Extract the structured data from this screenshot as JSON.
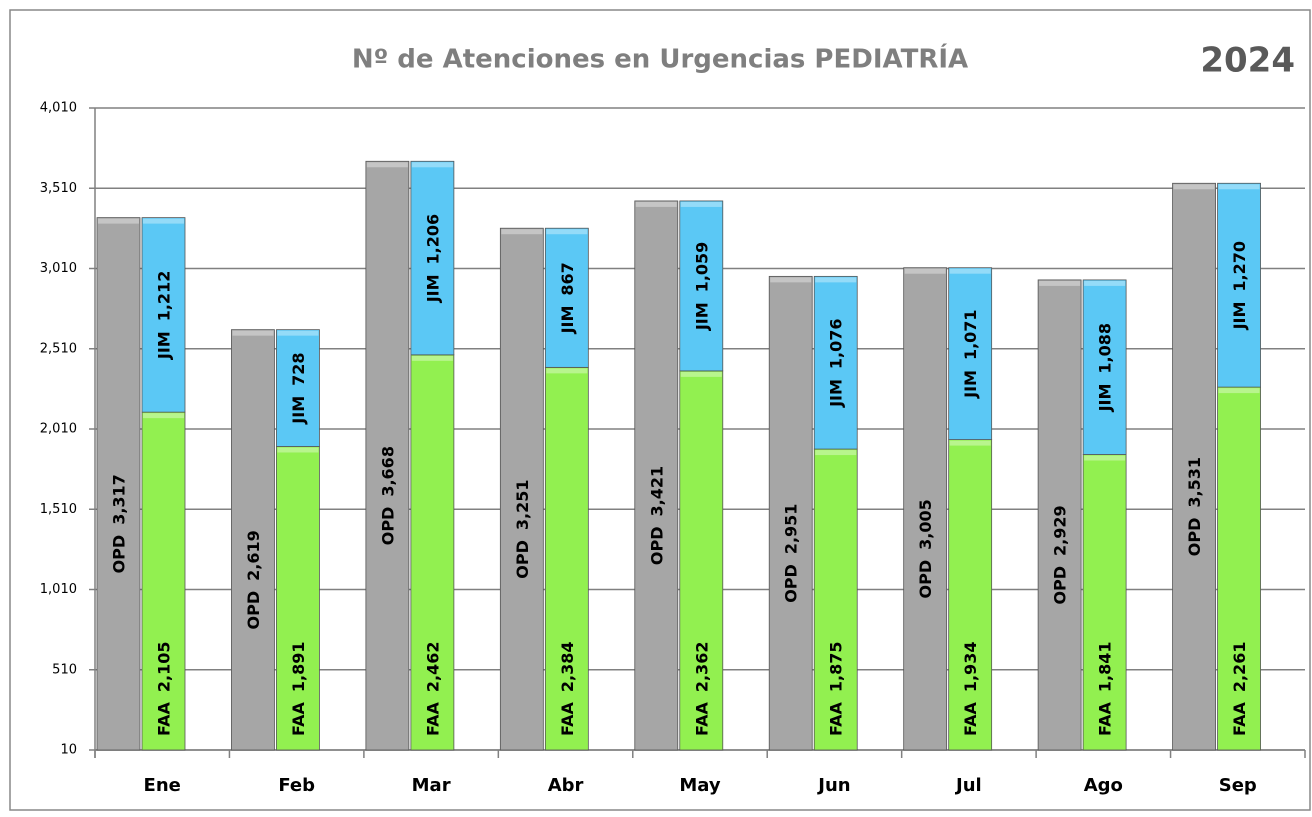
{
  "chart_data": {
    "type": "grouped_stacked_bar",
    "title": "Nº de Atenciones en Urgencias PEDIATRÍA",
    "subtitle": "2024",
    "categories": [
      "Ene",
      "Feb",
      "Mar",
      "Abr",
      "May",
      "Jun",
      "Jul",
      "Ago",
      "Sep"
    ],
    "series": [
      {
        "name": "OPD",
        "color": "#a6a6a6",
        "stack": "opd",
        "values": [
          3317,
          2619,
          3668,
          3251,
          3421,
          2951,
          3005,
          2929,
          3531
        ],
        "value_labels": [
          "3,317",
          "2,619",
          "3,668",
          "3,251",
          "3,421",
          "2,951",
          "3,005",
          "2,929",
          "3,531"
        ]
      },
      {
        "name": "FAA",
        "color": "#92f050",
        "stack": "total",
        "values": [
          2105,
          1891,
          2462,
          2384,
          2362,
          1875,
          1934,
          1841,
          2261
        ],
        "value_labels": [
          "2,105",
          "1,891",
          "2,462",
          "2,384",
          "2,362",
          "1,875",
          "1,934",
          "1,841",
          "2,261"
        ]
      },
      {
        "name": "JIM",
        "color": "#5bc8f5",
        "stack": "total",
        "values": [
          1212,
          728,
          1206,
          867,
          1059,
          1076,
          1071,
          1088,
          1270
        ],
        "value_labels": [
          "1,212",
          "728",
          "1,206",
          "867",
          "1,059",
          "1,076",
          "1,071",
          "1,088",
          "1,270"
        ]
      }
    ],
    "ylim": [
      10,
      4010
    ],
    "yticks": [
      10,
      510,
      {
        "value": 1010,
        "label": "1,010"
      },
      {
        "value": 1510,
        "label": "1,510"
      },
      {
        "value": 2010,
        "label": "2,010"
      },
      {
        "value": 2510,
        "label": "2,510"
      },
      {
        "value": 3010,
        "label": "3,010"
      },
      {
        "value": 3510,
        "label": "3,510"
      },
      {
        "value": 4010,
        "label": "4,010"
      }
    ],
    "grid": true
  }
}
